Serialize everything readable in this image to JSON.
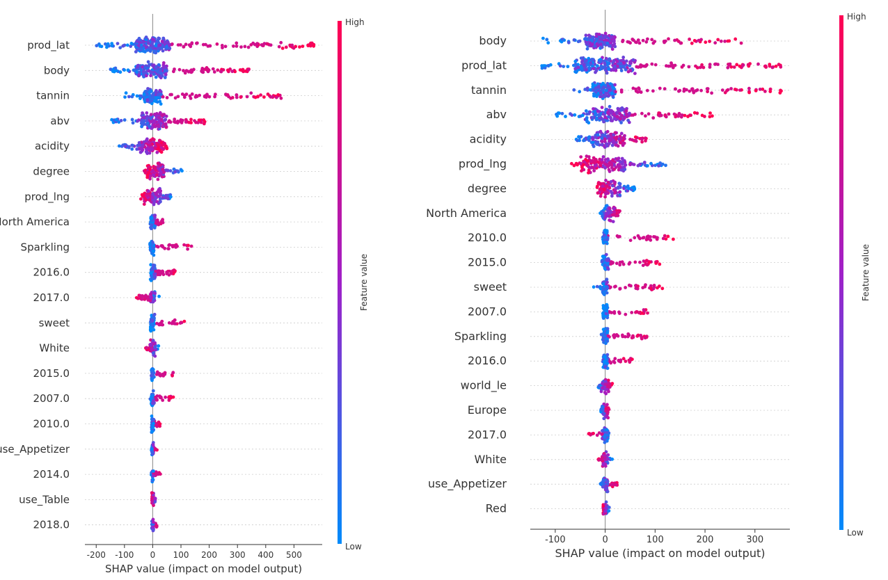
{
  "chart_data": [
    {
      "type": "scatter",
      "xlabel": "SHAP value (impact on model output)",
      "colorbar": {
        "label": "Feature value",
        "high": "High",
        "low": "Low",
        "high_color": "#ff0052",
        "mid_color": "#a020c8",
        "low_color": "#008bfb"
      },
      "xlim": [
        -240,
        600
      ],
      "xticks": [
        -200,
        -100,
        0,
        100,
        200,
        300,
        400,
        500
      ],
      "xtick_labels": [
        "-200",
        "-100",
        "0",
        "100",
        "200",
        "300",
        "400",
        "500"
      ],
      "features": [
        {
          "name": "prod_lat",
          "low": -200,
          "high": 570,
          "core": [
            -60,
            60
          ],
          "hi_side": "right",
          "dots": 260
        },
        {
          "name": "body",
          "low": -150,
          "high": 360,
          "core": [
            -60,
            50
          ],
          "hi_side": "right",
          "dots": 200
        },
        {
          "name": "tannin",
          "low": -100,
          "high": 465,
          "core": [
            -30,
            30
          ],
          "hi_side": "right",
          "dots": 180
        },
        {
          "name": "abv",
          "low": -145,
          "high": 205,
          "core": [
            -40,
            50
          ],
          "hi_side": "right",
          "dots": 170
        },
        {
          "name": "acidity",
          "low": -120,
          "high": 55,
          "core": [
            -50,
            40
          ],
          "hi_side": "right",
          "dots": 130
        },
        {
          "name": "degree",
          "low": -30,
          "high": 105,
          "core": [
            -20,
            40
          ],
          "hi_side": "left",
          "dots": 110
        },
        {
          "name": "prod_lng",
          "low": -45,
          "high": 70,
          "core": [
            -30,
            30
          ],
          "hi_side": "left",
          "dots": 110
        },
        {
          "name": "North America",
          "low": -10,
          "high": 45,
          "core": [
            -8,
            10
          ],
          "hi_side": "right",
          "dots": 70
        },
        {
          "name": "Sparkling",
          "low": -15,
          "high": 140,
          "core": [
            -10,
            5
          ],
          "hi_side": "right",
          "dots": 70
        },
        {
          "name": "2016.0",
          "low": -10,
          "high": 80,
          "core": [
            -8,
            10
          ],
          "hi_side": "right",
          "dots": 70
        },
        {
          "name": "2017.0",
          "low": -60,
          "high": 25,
          "core": [
            -8,
            8
          ],
          "hi_side": "left",
          "dots": 60
        },
        {
          "name": "sweet",
          "low": -10,
          "high": 115,
          "core": [
            -8,
            8
          ],
          "hi_side": "right",
          "dots": 60
        },
        {
          "name": "White",
          "low": -25,
          "high": 25,
          "core": [
            -10,
            10
          ],
          "hi_side": "left",
          "dots": 50
        },
        {
          "name": "2015.0",
          "low": -10,
          "high": 80,
          "core": [
            -5,
            5
          ],
          "hi_side": "right",
          "dots": 50
        },
        {
          "name": "2007.0",
          "low": -10,
          "high": 75,
          "core": [
            -5,
            5
          ],
          "hi_side": "right",
          "dots": 50
        },
        {
          "name": "2010.0",
          "low": -5,
          "high": 30,
          "core": [
            -4,
            4
          ],
          "hi_side": "right",
          "dots": 40
        },
        {
          "name": "use_Appetizer",
          "low": -5,
          "high": 15,
          "core": [
            -3,
            3
          ],
          "hi_side": "right",
          "dots": 30
        },
        {
          "name": "2014.0",
          "low": -5,
          "high": 30,
          "core": [
            -3,
            3
          ],
          "hi_side": "right",
          "dots": 30
        },
        {
          "name": "use_Table",
          "low": -5,
          "high": 15,
          "core": [
            -3,
            3
          ],
          "hi_side": "left",
          "dots": 30
        },
        {
          "name": "2018.0",
          "low": -5,
          "high": 15,
          "core": [
            -3,
            3
          ],
          "hi_side": "right",
          "dots": 30
        }
      ]
    },
    {
      "type": "scatter",
      "xlabel": "SHAP value (impact on model output)",
      "colorbar": {
        "label": "Feature value",
        "high": "High",
        "low": "Low",
        "high_color": "#ff0052",
        "mid_color": "#a020c8",
        "low_color": "#008bfb"
      },
      "xlim": [
        -150,
        370
      ],
      "xticks": [
        -100,
        0,
        100,
        200,
        300
      ],
      "xtick_labels": [
        "-100",
        "0",
        "100",
        "200",
        "300"
      ],
      "features": [
        {
          "name": "body",
          "low": -135,
          "high": 275,
          "core": [
            -40,
            20
          ],
          "hi_side": "right",
          "dots": 220
        },
        {
          "name": "prod_lat",
          "low": -140,
          "high": 355,
          "core": [
            -60,
            60
          ],
          "hi_side": "right",
          "dots": 260
        },
        {
          "name": "tannin",
          "low": -70,
          "high": 355,
          "core": [
            -25,
            20
          ],
          "hi_side": "right",
          "dots": 190
        },
        {
          "name": "abv",
          "low": -100,
          "high": 215,
          "core": [
            -40,
            50
          ],
          "hi_side": "right",
          "dots": 190
        },
        {
          "name": "acidity",
          "low": -60,
          "high": 85,
          "core": [
            -30,
            40
          ],
          "hi_side": "right",
          "dots": 150
        },
        {
          "name": "prod_lng",
          "low": -70,
          "high": 125,
          "core": [
            -50,
            40
          ],
          "hi_side": "left",
          "dots": 170
        },
        {
          "name": "degree",
          "low": -25,
          "high": 60,
          "core": [
            -15,
            30
          ],
          "hi_side": "left",
          "dots": 110
        },
        {
          "name": "North America",
          "low": -10,
          "high": 30,
          "core": [
            -6,
            20
          ],
          "hi_side": "right",
          "dots": 70
        },
        {
          "name": "2010.0",
          "low": -10,
          "high": 145,
          "core": [
            -5,
            5
          ],
          "hi_side": "right",
          "dots": 90
        },
        {
          "name": "2015.0",
          "low": -15,
          "high": 110,
          "core": [
            -5,
            8
          ],
          "hi_side": "right",
          "dots": 80
        },
        {
          "name": "sweet",
          "low": -25,
          "high": 115,
          "core": [
            -5,
            5
          ],
          "hi_side": "right",
          "dots": 80
        },
        {
          "name": "2007.0",
          "low": -5,
          "high": 90,
          "core": [
            -5,
            5
          ],
          "hi_side": "right",
          "dots": 80
        },
        {
          "name": "Sparkling",
          "low": -8,
          "high": 90,
          "core": [
            -5,
            5
          ],
          "hi_side": "right",
          "dots": 80
        },
        {
          "name": "2016.0",
          "low": -8,
          "high": 55,
          "core": [
            -5,
            5
          ],
          "hi_side": "right",
          "dots": 60
        },
        {
          "name": "world_le",
          "low": -15,
          "high": 15,
          "core": [
            -8,
            8
          ],
          "hi_side": "right",
          "dots": 50
        },
        {
          "name": "Europe",
          "low": -10,
          "high": 8,
          "core": [
            -6,
            6
          ],
          "hi_side": "right",
          "dots": 50
        },
        {
          "name": "2017.0",
          "low": -35,
          "high": 8,
          "core": [
            -6,
            6
          ],
          "hi_side": "left",
          "dots": 50
        },
        {
          "name": "White",
          "low": -15,
          "high": 15,
          "core": [
            -6,
            6
          ],
          "hi_side": "left",
          "dots": 50
        },
        {
          "name": "use_Appetizer",
          "low": -10,
          "high": 25,
          "core": [
            -5,
            5
          ],
          "hi_side": "right",
          "dots": 50
        },
        {
          "name": "Red",
          "low": -5,
          "high": 8,
          "core": [
            -4,
            4
          ],
          "hi_side": "left",
          "dots": 30
        }
      ]
    }
  ]
}
